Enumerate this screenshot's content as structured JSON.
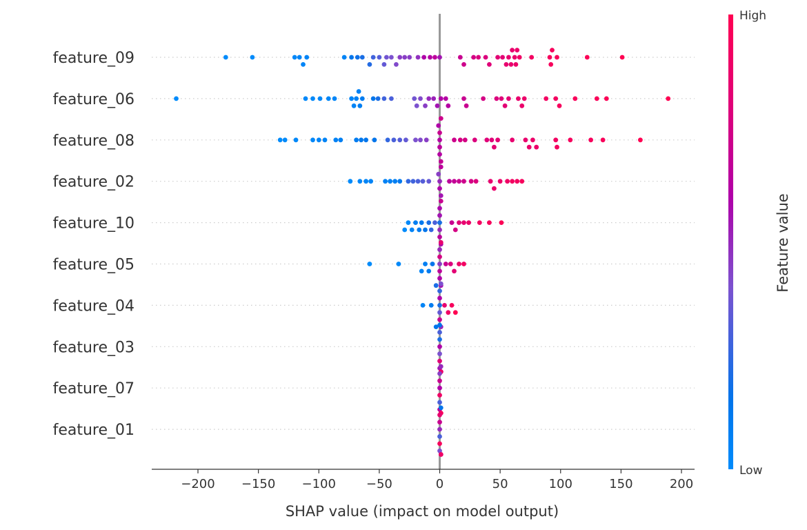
{
  "chart_data": {
    "type": "scatter",
    "subtype": "shap-beeswarm-summary",
    "title": "",
    "xlabel": "SHAP value (impact on model output)",
    "ylabel": "",
    "xlim": [
      -238,
      211
    ],
    "xticks": [
      -200,
      -150,
      -100,
      -50,
      0,
      50,
      100,
      150,
      200
    ],
    "xtick_labels": [
      "−200",
      "−150",
      "−100",
      "−50",
      "0",
      "50",
      "100",
      "150",
      "200"
    ],
    "grid": false,
    "colorbar": {
      "label": "Feature value",
      "high_label": "High",
      "low_label": "Low",
      "low_color": "#008bfb",
      "high_color": "#ff0052",
      "placement": "right"
    },
    "features": [
      {
        "name": "feature_09",
        "points": [
          [
            -177,
            0.0
          ],
          [
            -155,
            0.0
          ],
          [
            -120,
            0.02
          ],
          [
            -116,
            0.05
          ],
          [
            -113,
            0.04
          ],
          [
            -110,
            0.05
          ],
          [
            -79,
            0.05
          ],
          [
            -73,
            0.15
          ],
          [
            -68,
            0.18
          ],
          [
            -64,
            0.2
          ],
          [
            -58,
            0.22
          ],
          [
            -55,
            0.28
          ],
          [
            -50,
            0.32
          ],
          [
            -46,
            0.35
          ],
          [
            -44,
            0.38
          ],
          [
            -40,
            0.4
          ],
          [
            -36,
            0.42
          ],
          [
            -33,
            0.45
          ],
          [
            -29,
            0.45
          ],
          [
            -25,
            0.45
          ],
          [
            -18,
            0.48
          ],
          [
            -13,
            0.6
          ],
          [
            -8,
            0.62
          ],
          [
            -4,
            0.65
          ],
          [
            0,
            0.55
          ],
          [
            17,
            0.7
          ],
          [
            20,
            0.72
          ],
          [
            28,
            0.75
          ],
          [
            32,
            0.78
          ],
          [
            38,
            0.78
          ],
          [
            41,
            0.8
          ],
          [
            48,
            0.82
          ],
          [
            52,
            0.82
          ],
          [
            55,
            0.85
          ],
          [
            57,
            0.85
          ],
          [
            59,
            0.86
          ],
          [
            60,
            0.86
          ],
          [
            62,
            0.87
          ],
          [
            63,
            0.88
          ],
          [
            64,
            0.88
          ],
          [
            66,
            0.9
          ],
          [
            76,
            0.92
          ],
          [
            91,
            0.95
          ],
          [
            92,
            0.95
          ],
          [
            93,
            0.95
          ],
          [
            97,
            0.96
          ],
          [
            122,
            0.98
          ],
          [
            151,
            1.0
          ]
        ]
      },
      {
        "name": "feature_06",
        "points": [
          [
            -218,
            0.0
          ],
          [
            -111,
            0.02
          ],
          [
            -105,
            0.02
          ],
          [
            -99,
            0.03
          ],
          [
            -92,
            0.03
          ],
          [
            -87,
            0.04
          ],
          [
            -73,
            0.04
          ],
          [
            -71,
            0.05
          ],
          [
            -69,
            0.06
          ],
          [
            -67,
            0.06
          ],
          [
            -66,
            0.08
          ],
          [
            -64,
            0.1
          ],
          [
            -55,
            0.15
          ],
          [
            -51,
            0.2
          ],
          [
            -46,
            0.28
          ],
          [
            -40,
            0.3
          ],
          [
            -21,
            0.38
          ],
          [
            -19,
            0.4
          ],
          [
            -16,
            0.42
          ],
          [
            -12,
            0.45
          ],
          [
            -9,
            0.5
          ],
          [
            -5,
            0.52
          ],
          [
            -2,
            0.55
          ],
          [
            1,
            0.6
          ],
          [
            5,
            0.62
          ],
          [
            7,
            0.62
          ],
          [
            20,
            0.7
          ],
          [
            22,
            0.7
          ],
          [
            36,
            0.75
          ],
          [
            47,
            0.78
          ],
          [
            51,
            0.8
          ],
          [
            54,
            0.82
          ],
          [
            57,
            0.82
          ],
          [
            65,
            0.86
          ],
          [
            68,
            0.87
          ],
          [
            70,
            0.88
          ],
          [
            88,
            0.92
          ],
          [
            96,
            0.93
          ],
          [
            99,
            0.94
          ],
          [
            112,
            0.96
          ],
          [
            130,
            0.97
          ],
          [
            138,
            0.98
          ],
          [
            189,
            1.0
          ]
        ]
      },
      {
        "name": "feature_08",
        "points": [
          [
            -132,
            0.0
          ],
          [
            -128,
            0.01
          ],
          [
            -119,
            0.02
          ],
          [
            -105,
            0.03
          ],
          [
            -100,
            0.04
          ],
          [
            -95,
            0.05
          ],
          [
            -86,
            0.06
          ],
          [
            -82,
            0.08
          ],
          [
            -69,
            0.1
          ],
          [
            -65,
            0.12
          ],
          [
            -61,
            0.14
          ],
          [
            -54,
            0.15
          ],
          [
            -43,
            0.25
          ],
          [
            -38,
            0.3
          ],
          [
            -33,
            0.32
          ],
          [
            -28,
            0.35
          ],
          [
            -20,
            0.4
          ],
          [
            -16,
            0.42
          ],
          [
            -11,
            0.45
          ],
          [
            -1,
            0.6
          ],
          [
            0,
            0.62
          ],
          [
            0,
            0.65
          ],
          [
            1,
            0.68
          ],
          [
            0,
            0.7
          ],
          [
            1,
            0.72
          ],
          [
            0,
            0.62
          ],
          [
            12,
            0.72
          ],
          [
            17,
            0.75
          ],
          [
            21,
            0.75
          ],
          [
            29,
            0.78
          ],
          [
            39,
            0.8
          ],
          [
            43,
            0.8
          ],
          [
            45,
            0.82
          ],
          [
            48,
            0.82
          ],
          [
            60,
            0.85
          ],
          [
            71,
            0.86
          ],
          [
            74,
            0.87
          ],
          [
            77,
            0.88
          ],
          [
            80,
            0.88
          ],
          [
            96,
            0.92
          ],
          [
            97,
            0.93
          ],
          [
            108,
            0.94
          ],
          [
            125,
            0.95
          ],
          [
            135,
            0.96
          ],
          [
            166,
            1.0
          ]
        ]
      },
      {
        "name": "feature_02",
        "points": [
          [
            -74,
            0.0
          ],
          [
            -66,
            0.03
          ],
          [
            -61,
            0.04
          ],
          [
            -57,
            0.05
          ],
          [
            -45,
            0.06
          ],
          [
            -41,
            0.07
          ],
          [
            -37,
            0.08
          ],
          [
            -33,
            0.12
          ],
          [
            -26,
            0.25
          ],
          [
            -22,
            0.28
          ],
          [
            -18,
            0.3
          ],
          [
            -14,
            0.32
          ],
          [
            -9,
            0.35
          ],
          [
            -1,
            0.45
          ],
          [
            0,
            0.5
          ],
          [
            1,
            0.55
          ],
          [
            0,
            0.6
          ],
          [
            1,
            0.65
          ],
          [
            8,
            0.65
          ],
          [
            12,
            0.68
          ],
          [
            16,
            0.7
          ],
          [
            20,
            0.72
          ],
          [
            26,
            0.75
          ],
          [
            30,
            0.78
          ],
          [
            42,
            0.85
          ],
          [
            45,
            0.87
          ],
          [
            50,
            0.88
          ],
          [
            56,
            0.9
          ],
          [
            60,
            0.92
          ],
          [
            64,
            0.92
          ],
          [
            68,
            0.95
          ]
        ]
      },
      {
        "name": "feature_10",
        "points": [
          [
            -29,
            0.0
          ],
          [
            -26,
            0.02
          ],
          [
            -23,
            0.05
          ],
          [
            -20,
            0.08
          ],
          [
            -17,
            0.1
          ],
          [
            -15,
            0.12
          ],
          [
            -12,
            0.15
          ],
          [
            -9,
            0.2
          ],
          [
            -7,
            0.25
          ],
          [
            -4,
            0.3
          ],
          [
            0,
            0.2
          ],
          [
            0,
            0.5
          ],
          [
            0,
            0.55
          ],
          [
            1,
            0.6
          ],
          [
            0,
            0.65
          ],
          [
            1,
            0.7
          ],
          [
            0,
            0.58
          ],
          [
            10,
            0.7
          ],
          [
            13,
            0.75
          ],
          [
            16,
            0.8
          ],
          [
            20,
            0.85
          ],
          [
            24,
            0.88
          ],
          [
            33,
            0.92
          ],
          [
            41,
            0.95
          ],
          [
            51,
            0.98
          ]
        ]
      },
      {
        "name": "feature_05",
        "points": [
          [
            -58,
            0.0
          ],
          [
            -34,
            0.02
          ],
          [
            -15,
            0.05
          ],
          [
            -12,
            0.08
          ],
          [
            -9,
            0.1
          ],
          [
            -6,
            0.15
          ],
          [
            -3,
            0.2
          ],
          [
            0,
            0.45
          ],
          [
            1,
            0.55
          ],
          [
            0,
            0.65
          ],
          [
            0,
            0.75
          ],
          [
            1,
            0.85
          ],
          [
            0,
            0.6
          ],
          [
            0,
            0.5
          ],
          [
            5,
            0.7
          ],
          [
            9,
            0.78
          ],
          [
            12,
            0.82
          ],
          [
            16,
            0.88
          ],
          [
            20,
            0.92
          ]
        ]
      },
      {
        "name": "feature_04",
        "points": [
          [
            -14,
            0.05
          ],
          [
            -7,
            0.1
          ],
          [
            -3,
            0.15
          ],
          [
            0,
            0.2
          ],
          [
            0,
            0.35
          ],
          [
            1,
            0.5
          ],
          [
            0,
            0.6
          ],
          [
            0,
            0.7
          ],
          [
            1,
            0.4
          ],
          [
            0,
            0.25
          ],
          [
            4,
            0.85
          ],
          [
            7,
            0.9
          ],
          [
            10,
            0.95
          ],
          [
            13,
            1.0
          ]
        ]
      },
      {
        "name": "feature_03",
        "points": [
          [
            0,
            0.6
          ],
          [
            0,
            0.4
          ],
          [
            0,
            0.2
          ],
          [
            1,
            0.5
          ],
          [
            0,
            0.8
          ],
          [
            0,
            0.3
          ],
          [
            1,
            0.65
          ],
          [
            0,
            0.55
          ],
          [
            0,
            0.15
          ],
          [
            1,
            0.9
          ]
        ]
      },
      {
        "name": "feature_07",
        "points": [
          [
            0,
            0.6
          ],
          [
            0,
            0.9
          ],
          [
            1,
            0.5
          ],
          [
            0,
            0.7
          ],
          [
            0,
            0.3
          ],
          [
            1,
            0.85
          ],
          [
            0,
            0.45
          ],
          [
            0,
            0.65
          ],
          [
            1,
            0.95
          ]
        ]
      },
      {
        "name": "feature_01",
        "points": [
          [
            0,
            0.5
          ],
          [
            0,
            0.3
          ],
          [
            1,
            0.15
          ],
          [
            0,
            0.7
          ],
          [
            0,
            0.95
          ],
          [
            1,
            0.6
          ],
          [
            0,
            0.85
          ],
          [
            0,
            0.4
          ],
          [
            1,
            0.9
          ]
        ]
      }
    ]
  }
}
